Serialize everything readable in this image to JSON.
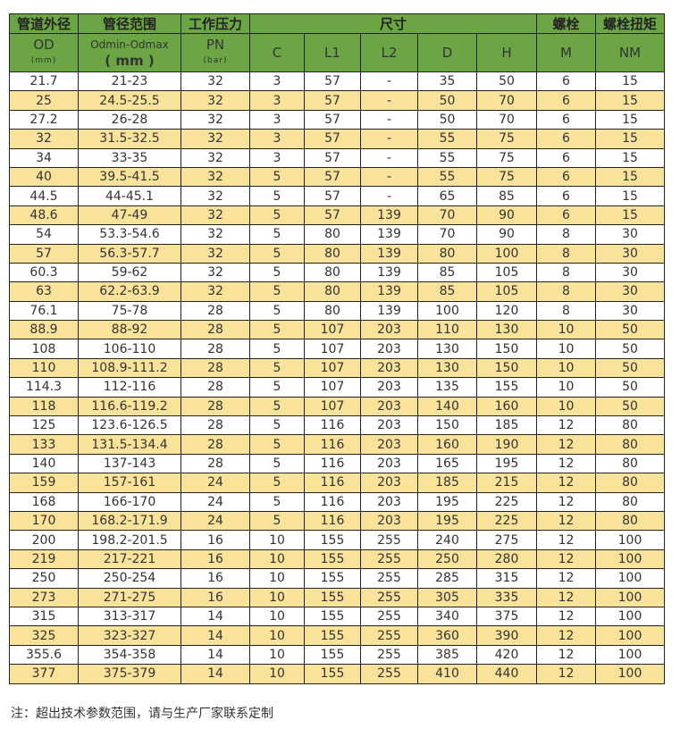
{
  "header_row1": {
    "od": "管道外径",
    "range": "管径范围",
    "pressure": "工作压力",
    "dims": "尺寸",
    "bolt": "螺栓",
    "torque": "螺栓扭矩"
  },
  "header_row2": {
    "od": "OD",
    "od_unit": "(mm)",
    "range_main": "Odmin-Odmax",
    "range_unit": "( mm )",
    "pn": "PN",
    "pn_unit": "(bar)",
    "c": "C",
    "l1": "L1",
    "l2": "L2",
    "d": "D",
    "h": "H",
    "m": "M",
    "nm": "NM"
  },
  "colors": {
    "header": "#6ca644",
    "stripe": "#f9e29a"
  },
  "rows": [
    [
      "21.7",
      "21-23",
      "32",
      "3",
      "57",
      "-",
      "35",
      "50",
      "6",
      "15"
    ],
    [
      "25",
      "24.5-25.5",
      "32",
      "3",
      "57",
      "-",
      "50",
      "70",
      "6",
      "15"
    ],
    [
      "27.2",
      "26-28",
      "32",
      "3",
      "57",
      "-",
      "50",
      "70",
      "6",
      "15"
    ],
    [
      "32",
      "31.5-32.5",
      "32",
      "3",
      "57",
      "-",
      "55",
      "75",
      "6",
      "15"
    ],
    [
      "34",
      "33-35",
      "32",
      "3",
      "57",
      "-",
      "55",
      "75",
      "6",
      "15"
    ],
    [
      "40",
      "39.5-41.5",
      "32",
      "5",
      "57",
      "-",
      "55",
      "75",
      "6",
      "15"
    ],
    [
      "44.5",
      "44-45.1",
      "32",
      "5",
      "57",
      "-",
      "65",
      "85",
      "6",
      "15"
    ],
    [
      "48.6",
      "47-49",
      "32",
      "5",
      "57",
      "139",
      "70",
      "90",
      "6",
      "15"
    ],
    [
      "54",
      "53.3-54.6",
      "32",
      "5",
      "80",
      "139",
      "70",
      "90",
      "8",
      "30"
    ],
    [
      "57",
      "56.3-57.7",
      "32",
      "5",
      "80",
      "139",
      "80",
      "100",
      "8",
      "30"
    ],
    [
      "60.3",
      "59-62",
      "32",
      "5",
      "80",
      "139",
      "85",
      "105",
      "8",
      "30"
    ],
    [
      "63",
      "62.2-63.9",
      "32",
      "5",
      "80",
      "139",
      "85",
      "105",
      "8",
      "30"
    ],
    [
      "76.1",
      "75-78",
      "28",
      "5",
      "80",
      "139",
      "100",
      "120",
      "8",
      "30"
    ],
    [
      "88.9",
      "88-92",
      "28",
      "5",
      "107",
      "203",
      "110",
      "130",
      "10",
      "50"
    ],
    [
      "108",
      "106-110",
      "28",
      "5",
      "107",
      "203",
      "130",
      "150",
      "10",
      "50"
    ],
    [
      "110",
      "108.9-111.2",
      "28",
      "5",
      "107",
      "203",
      "130",
      "150",
      "10",
      "50"
    ],
    [
      "114.3",
      "112-116",
      "28",
      "5",
      "107",
      "203",
      "135",
      "155",
      "10",
      "50"
    ],
    [
      "118",
      "116.6-119.2",
      "28",
      "5",
      "107",
      "203",
      "140",
      "160",
      "10",
      "50"
    ],
    [
      "125",
      "123.6-126.5",
      "28",
      "5",
      "116",
      "203",
      "150",
      "185",
      "12",
      "80"
    ],
    [
      "133",
      "131.5-134.4",
      "28",
      "5",
      "116",
      "203",
      "160",
      "190",
      "12",
      "80"
    ],
    [
      "140",
      "137-143",
      "28",
      "5",
      "116",
      "203",
      "165",
      "195",
      "12",
      "80"
    ],
    [
      "159",
      "157-161",
      "24",
      "5",
      "116",
      "203",
      "185",
      "215",
      "12",
      "80"
    ],
    [
      "168",
      "166-170",
      "24",
      "5",
      "116",
      "203",
      "195",
      "225",
      "12",
      "80"
    ],
    [
      "170",
      "168.2-171.9",
      "24",
      "5",
      "116",
      "203",
      "195",
      "225",
      "12",
      "80"
    ],
    [
      "200",
      "198.2-201.5",
      "16",
      "10",
      "155",
      "255",
      "240",
      "275",
      "12",
      "100"
    ],
    [
      "219",
      "217-221",
      "16",
      "10",
      "155",
      "255",
      "250",
      "280",
      "12",
      "100"
    ],
    [
      "250",
      "250-254",
      "16",
      "10",
      "155",
      "255",
      "285",
      "315",
      "12",
      "100"
    ],
    [
      "273",
      "271-275",
      "16",
      "10",
      "155",
      "255",
      "305",
      "335",
      "12",
      "100"
    ],
    [
      "315",
      "313-317",
      "14",
      "10",
      "155",
      "255",
      "340",
      "375",
      "12",
      "100"
    ],
    [
      "325",
      "323-327",
      "14",
      "10",
      "155",
      "255",
      "360",
      "390",
      "12",
      "100"
    ],
    [
      "355.6",
      "354-358",
      "14",
      "10",
      "155",
      "255",
      "385",
      "420",
      "12",
      "100"
    ],
    [
      "377",
      "375-379",
      "14",
      "10",
      "155",
      "255",
      "410",
      "440",
      "12",
      "100"
    ]
  ],
  "note": "注：超出技术参数范围，请与生产厂家联系定制"
}
